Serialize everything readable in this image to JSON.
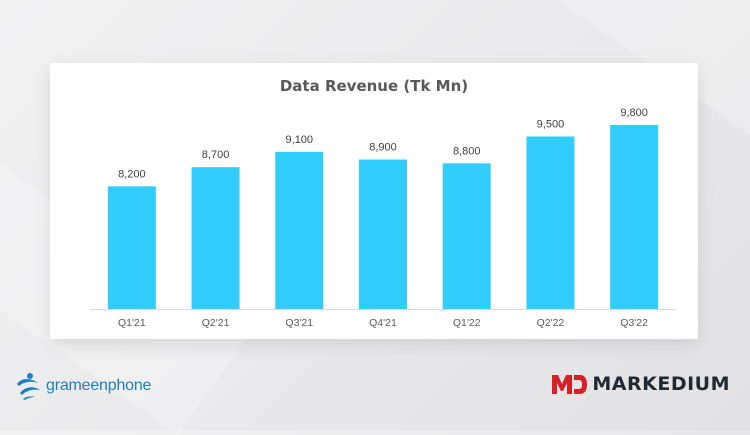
{
  "chart_data": {
    "type": "bar",
    "title": "Data Revenue (Tk Mn)",
    "categories": [
      "Q1'21",
      "Q2'21",
      "Q3'21",
      "Q4'21",
      "Q1'22",
      "Q2'22",
      "Q3'22"
    ],
    "values": [
      8200,
      8700,
      9100,
      8900,
      8800,
      9500,
      9800
    ],
    "value_labels": [
      "8,200",
      "8,700",
      "9,100",
      "8,900",
      "8,800",
      "9,500",
      "9,800"
    ],
    "ylim": [
      5000,
      9800
    ],
    "grid": false,
    "legend": "none",
    "bar_color": "#33ccff"
  },
  "logos": {
    "left": {
      "name": "grameenphone",
      "icon": "grameenphone-telenor-icon",
      "color": "#1e7fc0"
    },
    "right": {
      "name": "MARKEDIUM",
      "icon": "markedium-md-icon",
      "color": "#d62027"
    }
  }
}
